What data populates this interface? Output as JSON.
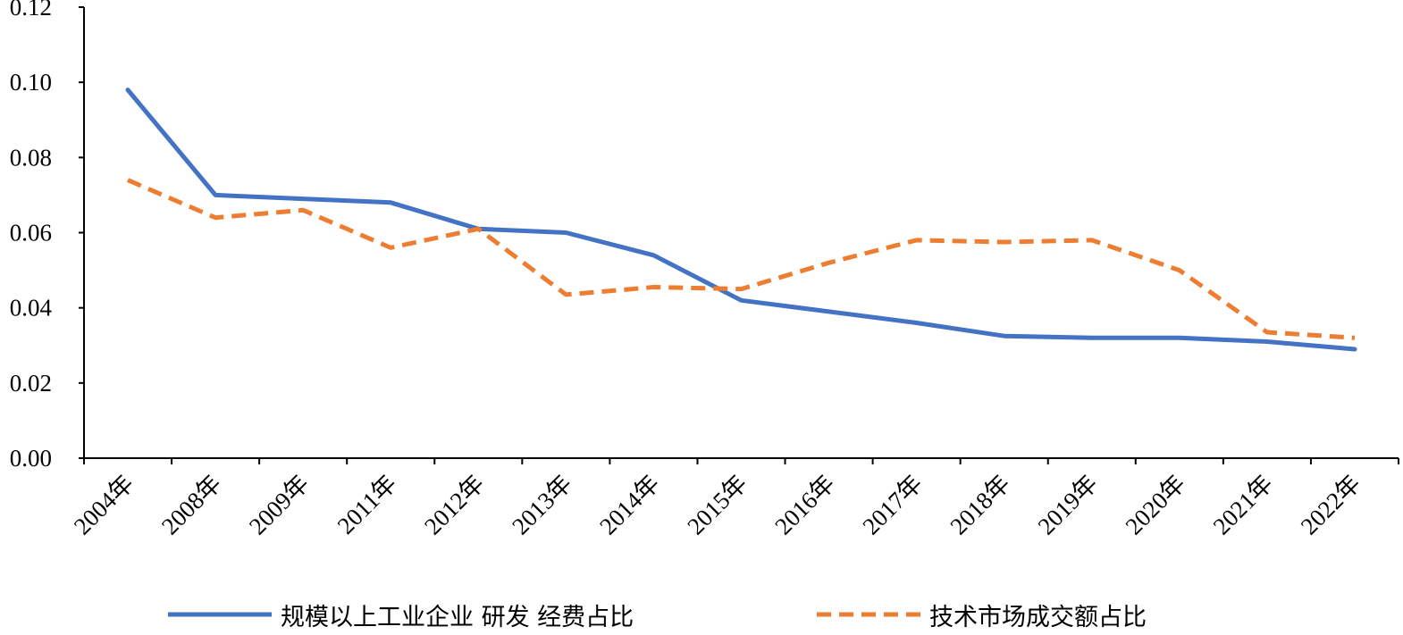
{
  "chart_data": {
    "type": "line",
    "title": "",
    "xlabel": "",
    "ylabel": "",
    "categories": [
      "2004年",
      "2008年",
      "2009年",
      "2011年",
      "2012年",
      "2013年",
      "2014年",
      "2015年",
      "2016年",
      "2017年",
      "2018年",
      "2019年",
      "2020年",
      "2021年",
      "2022年"
    ],
    "ylim": [
      0,
      0.12
    ],
    "yticks": [
      "0.00",
      "0.02",
      "0.04",
      "0.06",
      "0.08",
      "0.10",
      "0.12"
    ],
    "grid": false,
    "legend_position": "bottom",
    "series": [
      {
        "name": "规模以上工业企业 研发 经费占比",
        "color": "#4472C4",
        "line_style": "solid",
        "values": [
          0.098,
          0.07,
          0.069,
          0.068,
          0.061,
          0.06,
          0.054,
          0.042,
          0.039,
          0.036,
          0.0325,
          0.032,
          0.032,
          0.031,
          0.029
        ]
      },
      {
        "name": "技术市场成交额占比",
        "color": "#ED7D31",
        "line_style": "dashed",
        "values": [
          0.074,
          0.064,
          0.066,
          0.056,
          0.061,
          0.0435,
          0.0455,
          0.045,
          0.052,
          0.058,
          0.0575,
          0.058,
          0.05,
          0.0335,
          0.032
        ]
      }
    ]
  }
}
